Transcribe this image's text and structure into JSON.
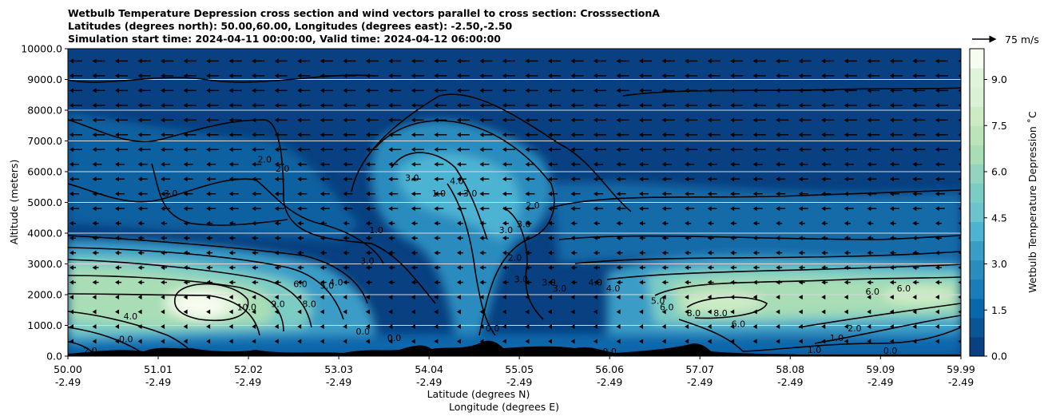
{
  "chart_data": {
    "type": "heatmap",
    "title_lines": [
      "Wetbulb Temperature Depression cross section and wind vectors parallel to cross section: CrosssectionA",
      "Latitudes (degrees north): 50.00,60.00, Longitudes (degrees east): -2.50,-2.50",
      "Simulation start time: 2024-04-11 00:00:00, Valid time: 2024-04-12 06:00:00"
    ],
    "xlabel": "Latitude (degrees N)",
    "xlabel2": "Longitude (degrees E)",
    "ylabel": "Altitude (meters)",
    "xlim": [
      50.0,
      59.99
    ],
    "ylim": [
      0,
      10000
    ],
    "x_ticks": [
      {
        "lat": "50.00",
        "lon": "-2.49",
        "value": 50.0
      },
      {
        "lat": "51.01",
        "lon": "-2.49",
        "value": 51.01
      },
      {
        "lat": "52.02",
        "lon": "-2.49",
        "value": 52.02
      },
      {
        "lat": "53.03",
        "lon": "-2.49",
        "value": 53.03
      },
      {
        "lat": "54.04",
        "lon": "-2.49",
        "value": 54.04
      },
      {
        "lat": "55.05",
        "lon": "-2.49",
        "value": 55.05
      },
      {
        "lat": "56.06",
        "lon": "-2.49",
        "value": 56.06
      },
      {
        "lat": "57.07",
        "lon": "-2.49",
        "value": 57.07
      },
      {
        "lat": "58.08",
        "lon": "-2.49",
        "value": 58.08
      },
      {
        "lat": "59.09",
        "lon": "-2.49",
        "value": 59.09
      },
      {
        "lat": "59.99",
        "lon": "-2.49",
        "value": 59.99
      }
    ],
    "y_ticks": [
      {
        "label": "0.0",
        "value": 0
      },
      {
        "label": "1000.0",
        "value": 1000
      },
      {
        "label": "2000.0",
        "value": 2000
      },
      {
        "label": "3000.0",
        "value": 3000
      },
      {
        "label": "4000.0",
        "value": 4000
      },
      {
        "label": "5000.0",
        "value": 5000
      },
      {
        "label": "6000.0",
        "value": 6000
      },
      {
        "label": "7000.0",
        "value": 7000
      },
      {
        "label": "8000.0",
        "value": 8000
      },
      {
        "label": "9000.0",
        "value": 9000
      },
      {
        "label": "10000.0",
        "value": 10000
      }
    ],
    "horizontal_grid": true,
    "colorbar": {
      "label": "Wetbulb Temperature Depression $^\\circ$C",
      "label_display": "Wetbulb Temperature Depression ˚C",
      "range": [
        0,
        10
      ],
      "ticks": [
        {
          "label": "0.0",
          "value": 0.0
        },
        {
          "label": "1.5",
          "value": 1.5
        },
        {
          "label": "3.0",
          "value": 3.0
        },
        {
          "label": "4.5",
          "value": 4.5
        },
        {
          "label": "6.0",
          "value": 6.0
        },
        {
          "label": "7.5",
          "value": 7.5
        },
        {
          "label": "9.0",
          "value": 9.0
        }
      ],
      "colors": [
        "#084081",
        "#0a5596",
        "#0868ac",
        "#1a7cb9",
        "#2b8cbe",
        "#3a9dc6",
        "#4eb3d3",
        "#6cc3cc",
        "#7bccc4",
        "#92d4c0",
        "#a8ddb5",
        "#bbe4bb",
        "#ccebc5",
        "#dbf1d5",
        "#e0f3db",
        "#f7fcf0"
      ]
    },
    "quiver_key": {
      "label": "75 m/s",
      "value": 75
    },
    "wind_arrows_direction": "left",
    "features": [
      {
        "name": "low-level moist layer south",
        "lat_range": [
          50.0,
          53.3
        ],
        "alt_range": [
          500,
          3800
        ],
        "max_value": 10.0
      },
      {
        "name": "dry peak",
        "lat": 51.7,
        "alt": 1800,
        "value": 10.0
      },
      {
        "name": "upper moist tongue",
        "lat_range": [
          53.3,
          55.6
        ],
        "alt_range": [
          1500,
          8000
        ],
        "value": 3.0
      },
      {
        "name": "low-level moist layer north",
        "lat_range": [
          56.5,
          59.99
        ],
        "alt_range": [
          800,
          3000
        ],
        "max_value": 9.0
      }
    ],
    "contour_labels": [
      {
        "text": "2.0",
        "lat": 52.2,
        "alt": 6300
      },
      {
        "text": "2.0",
        "lat": 52.4,
        "alt": 6000
      },
      {
        "text": "3.0",
        "lat": 51.15,
        "alt": 5200
      },
      {
        "text": "1.0",
        "lat": 53.45,
        "alt": 4000
      },
      {
        "text": "3.0",
        "lat": 53.35,
        "alt": 3000
      },
      {
        "text": "6.0",
        "lat": 52.6,
        "alt": 2250
      },
      {
        "text": "5.0",
        "lat": 52.9,
        "alt": 2200
      },
      {
        "text": "4.0",
        "lat": 53.0,
        "alt": 2300
      },
      {
        "text": "8.0",
        "lat": 52.7,
        "alt": 1600
      },
      {
        "text": "9.0",
        "lat": 52.35,
        "alt": 1600
      },
      {
        "text": "10.0",
        "lat": 52.0,
        "alt": 1500
      },
      {
        "text": "4.0",
        "lat": 50.7,
        "alt": 1200
      },
      {
        "text": "0.0",
        "lat": 53.3,
        "alt": 700
      },
      {
        "text": "0.0",
        "lat": 53.65,
        "alt": 500
      },
      {
        "text": "0.0",
        "lat": 54.75,
        "alt": 800
      },
      {
        "text": "3.0",
        "lat": 53.85,
        "alt": 5700
      },
      {
        "text": "1.0",
        "lat": 54.15,
        "alt": 5200
      },
      {
        "text": "4.0",
        "lat": 54.35,
        "alt": 5600
      },
      {
        "text": "3.0",
        "lat": 54.5,
        "alt": 5200
      },
      {
        "text": "3.0",
        "lat": 54.9,
        "alt": 4000
      },
      {
        "text": "3.0",
        "lat": 55.1,
        "alt": 4200
      },
      {
        "text": "2.0",
        "lat": 55.2,
        "alt": 4800
      },
      {
        "text": "2.0",
        "lat": 55.0,
        "alt": 3100
      },
      {
        "text": "3.0",
        "lat": 55.07,
        "alt": 2400
      },
      {
        "text": "3.0",
        "lat": 55.38,
        "alt": 2300
      },
      {
        "text": "3.0",
        "lat": 55.5,
        "alt": 2100
      },
      {
        "text": "4.0",
        "lat": 55.9,
        "alt": 2300
      },
      {
        "text": "4.0",
        "lat": 56.1,
        "alt": 2100
      },
      {
        "text": "5.0",
        "lat": 56.6,
        "alt": 1700
      },
      {
        "text": "6.0",
        "lat": 56.7,
        "alt": 1500
      },
      {
        "text": "8.0",
        "lat": 57.0,
        "alt": 1300
      },
      {
        "text": "8.0",
        "lat": 57.3,
        "alt": 1300
      },
      {
        "text": "6.0",
        "lat": 57.5,
        "alt": 950
      },
      {
        "text": "6.0",
        "lat": 59.0,
        "alt": 2000
      },
      {
        "text": "6.0",
        "lat": 59.35,
        "alt": 2100
      },
      {
        "text": "2.0",
        "lat": 58.8,
        "alt": 800
      },
      {
        "text": "1.0",
        "lat": 58.6,
        "alt": 500
      },
      {
        "text": "1.0",
        "lat": 58.35,
        "alt": 100
      },
      {
        "text": "0.0",
        "lat": 56.06,
        "alt": 50
      },
      {
        "text": "0.0",
        "lat": 59.2,
        "alt": 80
      },
      {
        "text": "0.0",
        "lat": 50.65,
        "alt": 450
      },
      {
        "text": "2.0",
        "lat": 50.25,
        "alt": 80
      }
    ]
  }
}
